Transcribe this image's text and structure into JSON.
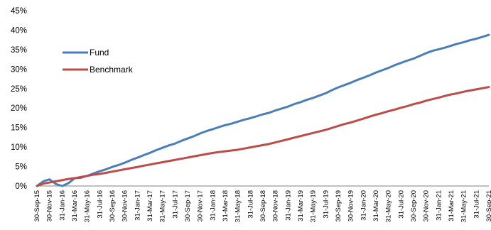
{
  "chart_data": {
    "type": "line",
    "title": "",
    "xlabel": "",
    "ylabel": "",
    "ylim": [
      0,
      45
    ],
    "y_ticks": [
      "0%",
      "5%",
      "10%",
      "15%",
      "20%",
      "25%",
      "30%",
      "35%",
      "40%",
      "45%"
    ],
    "x_tick_labels": [
      "30-Sep-15",
      "30-Nov-15",
      "31-Jan-16",
      "31-Mar-16",
      "31-May-16",
      "31-Jul-16",
      "30-Sep-16",
      "30-Nov-16",
      "31-Jan-17",
      "31-Mar-17",
      "31-May-17",
      "31-Jul-17",
      "30-Sep-17",
      "30-Nov-17",
      "31-Jan-18",
      "31-Mar-18",
      "31-May-18",
      "31-Jul-18",
      "30-Sep-18",
      "30-Nov-18",
      "31-Jan-19",
      "31-Mar-19",
      "31-May-19",
      "31-Jul-19",
      "30-Sep-19",
      "30-Nov-19",
      "31-Jan-20",
      "31-Mar-20",
      "31-May-20",
      "31-Jul-20",
      "30-Sep-20",
      "30-Nov-20",
      "31-Jan-21",
      "31-Mar-21",
      "31-May-21",
      "31-Jul-21",
      "30-Sep-21"
    ],
    "x": [
      "2015-09-30",
      "2015-10-31",
      "2015-11-30",
      "2015-12-31",
      "2016-01-31",
      "2016-02-29",
      "2016-03-31",
      "2016-04-30",
      "2016-05-31",
      "2016-06-30",
      "2016-07-31",
      "2016-08-31",
      "2016-09-30",
      "2016-10-31",
      "2016-11-30",
      "2016-12-31",
      "2017-01-31",
      "2017-02-28",
      "2017-03-31",
      "2017-04-30",
      "2017-05-31",
      "2017-06-30",
      "2017-07-31",
      "2017-08-31",
      "2017-09-30",
      "2017-10-31",
      "2017-11-30",
      "2017-12-31",
      "2018-01-31",
      "2018-02-28",
      "2018-03-31",
      "2018-04-30",
      "2018-05-31",
      "2018-06-30",
      "2018-07-31",
      "2018-08-31",
      "2018-09-30",
      "2018-10-31",
      "2018-11-30",
      "2018-12-31",
      "2019-01-31",
      "2019-02-28",
      "2019-03-31",
      "2019-04-30",
      "2019-05-31",
      "2019-06-30",
      "2019-07-31",
      "2019-08-31",
      "2019-09-30",
      "2019-10-31",
      "2019-11-30",
      "2019-12-31",
      "2020-01-31",
      "2020-02-29",
      "2020-03-31",
      "2020-04-30",
      "2020-05-31",
      "2020-06-30",
      "2020-07-31",
      "2020-08-31",
      "2020-09-30",
      "2020-10-31",
      "2020-11-30",
      "2020-12-31",
      "2021-01-31",
      "2021-02-28",
      "2021-03-31",
      "2021-04-30",
      "2021-05-31",
      "2021-06-30",
      "2021-07-31",
      "2021-08-31",
      "2021-09-30"
    ],
    "series": [
      {
        "name": "Fund",
        "color": "#4a7ebb",
        "values": [
          0,
          1.2,
          1.7,
          0.5,
          0,
          0.7,
          2.0,
          2.1,
          2.6,
          3.2,
          3.8,
          4.3,
          4.9,
          5.4,
          6.0,
          6.7,
          7.3,
          7.9,
          8.5,
          9.2,
          9.8,
          10.4,
          10.9,
          11.6,
          12.2,
          12.8,
          13.5,
          14.1,
          14.6,
          15.1,
          15.6,
          16.0,
          16.5,
          17.0,
          17.4,
          17.9,
          18.4,
          18.8,
          19.4,
          19.9,
          20.4,
          21.0,
          21.5,
          22.1,
          22.6,
          23.2,
          23.8,
          24.6,
          25.3,
          25.9,
          26.5,
          27.2,
          27.8,
          28.4,
          29.1,
          29.7,
          30.3,
          31.0,
          31.6,
          32.2,
          32.7,
          33.4,
          34.1,
          34.7,
          35.1,
          35.5,
          36.0,
          36.5,
          36.9,
          37.4,
          37.8,
          38.3,
          38.8
        ]
      },
      {
        "name": "Benchmark",
        "color": "#be4b48",
        "values": [
          0,
          0.6,
          0.9,
          1.2,
          1.5,
          1.8,
          2.0,
          2.3,
          2.6,
          2.9,
          3.1,
          3.4,
          3.7,
          4.0,
          4.3,
          4.6,
          4.9,
          5.2,
          5.5,
          5.8,
          6.1,
          6.4,
          6.7,
          7.0,
          7.3,
          7.6,
          7.9,
          8.2,
          8.5,
          8.7,
          8.9,
          9.1,
          9.3,
          9.6,
          9.9,
          10.2,
          10.5,
          10.8,
          11.2,
          11.6,
          12.0,
          12.4,
          12.8,
          13.2,
          13.6,
          14.0,
          14.4,
          14.9,
          15.4,
          15.9,
          16.3,
          16.8,
          17.3,
          17.8,
          18.3,
          18.7,
          19.2,
          19.6,
          20.1,
          20.5,
          21.0,
          21.4,
          21.9,
          22.3,
          22.7,
          23.1,
          23.5,
          23.8,
          24.2,
          24.5,
          24.8,
          25.1,
          25.4
        ]
      }
    ],
    "legend_position": "left"
  }
}
